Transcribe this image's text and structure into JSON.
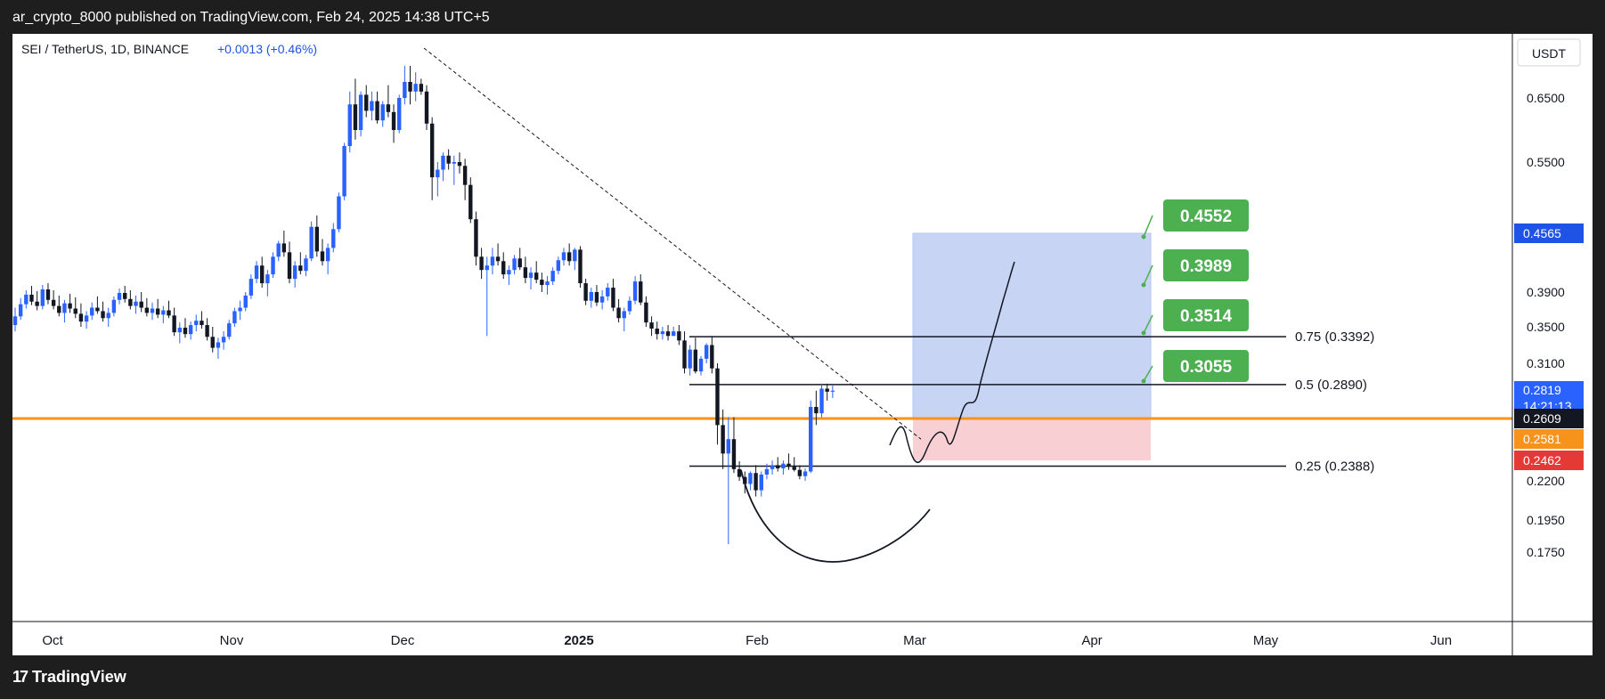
{
  "header": {
    "publisher": "ar_crypto_8000 published on TradingView.com, Feb 24, 2025 14:38 UTC+5"
  },
  "footer": {
    "brand": "TradingView",
    "brand_mark": "17"
  },
  "chart_data": {
    "type": "candlestick",
    "symbol": "SEI / TetherUS, 1D, BINANCE",
    "change": "+0.0013 (+0.46%)",
    "currency": "USDT",
    "x_ticks": [
      "Oct",
      "Nov",
      "Dec",
      "2025",
      "Feb",
      "Mar",
      "Apr",
      "May",
      "Jun"
    ],
    "y_ticks": [
      "0.6500",
      "0.5500",
      "0.3900",
      "0.3500",
      "0.3100",
      "0.2200",
      "0.1950",
      "0.1750"
    ],
    "last_price": "0.2819",
    "countdown": "14:21:13",
    "price_labels": [
      {
        "value": "0.4565",
        "color": "#1e53e5"
      },
      {
        "value": "0.2609",
        "color": "#131722"
      },
      {
        "value": "0.2581",
        "color": "#f7931a"
      },
      {
        "value": "0.2462",
        "color": "#e53935"
      }
    ],
    "targets": [
      "0.4552",
      "0.3989",
      "0.3514",
      "0.3055"
    ],
    "fib_levels": [
      {
        "label": "0.75 (0.3392)",
        "value": 0.3392
      },
      {
        "label": "0.5 (0.2890)",
        "value": 0.289
      },
      {
        "label": "0.25 (0.2388)",
        "value": 0.2388
      }
    ],
    "support_level": 0.2609,
    "colors": {
      "up": "#2962ff",
      "down": "#131722",
      "support": "#f7931a",
      "target": "#4caf50",
      "profit_zone": "#c7d4f3",
      "loss_zone": "#f8d0d3"
    },
    "candles": [
      [
        0.352,
        0.372,
        0.345,
        0.362
      ],
      [
        0.362,
        0.383,
        0.358,
        0.376
      ],
      [
        0.376,
        0.392,
        0.371,
        0.387
      ],
      [
        0.387,
        0.397,
        0.375,
        0.379
      ],
      [
        0.379,
        0.391,
        0.369,
        0.374
      ],
      [
        0.374,
        0.398,
        0.37,
        0.393
      ],
      [
        0.393,
        0.4,
        0.376,
        0.381
      ],
      [
        0.381,
        0.392,
        0.37,
        0.374
      ],
      [
        0.374,
        0.386,
        0.362,
        0.366
      ],
      [
        0.366,
        0.381,
        0.355,
        0.377
      ],
      [
        0.377,
        0.388,
        0.366,
        0.371
      ],
      [
        0.371,
        0.384,
        0.36,
        0.365
      ],
      [
        0.365,
        0.377,
        0.35,
        0.356
      ],
      [
        0.356,
        0.368,
        0.348,
        0.363
      ],
      [
        0.363,
        0.378,
        0.358,
        0.372
      ],
      [
        0.372,
        0.385,
        0.365,
        0.368
      ],
      [
        0.368,
        0.379,
        0.356,
        0.36
      ],
      [
        0.36,
        0.372,
        0.35,
        0.366
      ],
      [
        0.366,
        0.385,
        0.362,
        0.381
      ],
      [
        0.381,
        0.394,
        0.376,
        0.389
      ],
      [
        0.389,
        0.397,
        0.378,
        0.382
      ],
      [
        0.382,
        0.392,
        0.37,
        0.374
      ],
      [
        0.374,
        0.386,
        0.365,
        0.379
      ],
      [
        0.379,
        0.39,
        0.367,
        0.372
      ],
      [
        0.372,
        0.383,
        0.362,
        0.366
      ],
      [
        0.366,
        0.378,
        0.358,
        0.371
      ],
      [
        0.371,
        0.382,
        0.36,
        0.364
      ],
      [
        0.364,
        0.374,
        0.354,
        0.369
      ],
      [
        0.369,
        0.38,
        0.36,
        0.363
      ],
      [
        0.363,
        0.372,
        0.34,
        0.344
      ],
      [
        0.344,
        0.355,
        0.332,
        0.349
      ],
      [
        0.349,
        0.36,
        0.338,
        0.342
      ],
      [
        0.342,
        0.356,
        0.336,
        0.352
      ],
      [
        0.352,
        0.364,
        0.345,
        0.357
      ],
      [
        0.357,
        0.368,
        0.348,
        0.352
      ],
      [
        0.352,
        0.36,
        0.335,
        0.339
      ],
      [
        0.339,
        0.35,
        0.322,
        0.327
      ],
      [
        0.327,
        0.338,
        0.315,
        0.333
      ],
      [
        0.333,
        0.345,
        0.325,
        0.339
      ],
      [
        0.339,
        0.358,
        0.336,
        0.354
      ],
      [
        0.354,
        0.372,
        0.35,
        0.368
      ],
      [
        0.368,
        0.38,
        0.358,
        0.372
      ],
      [
        0.372,
        0.39,
        0.368,
        0.386
      ],
      [
        0.386,
        0.41,
        0.382,
        0.405
      ],
      [
        0.405,
        0.425,
        0.4,
        0.42
      ],
      [
        0.42,
        0.43,
        0.395,
        0.4
      ],
      [
        0.4,
        0.415,
        0.385,
        0.41
      ],
      [
        0.41,
        0.435,
        0.406,
        0.43
      ],
      [
        0.43,
        0.448,
        0.425,
        0.445
      ],
      [
        0.445,
        0.46,
        0.43,
        0.435
      ],
      [
        0.435,
        0.447,
        0.4,
        0.405
      ],
      [
        0.405,
        0.425,
        0.395,
        0.42
      ],
      [
        0.42,
        0.435,
        0.41,
        0.414
      ],
      [
        0.414,
        0.432,
        0.408,
        0.428
      ],
      [
        0.428,
        0.472,
        0.425,
        0.465
      ],
      [
        0.465,
        0.48,
        0.43,
        0.436
      ],
      [
        0.436,
        0.45,
        0.42,
        0.425
      ],
      [
        0.425,
        0.445,
        0.41,
        0.44
      ],
      [
        0.44,
        0.47,
        0.435,
        0.462
      ],
      [
        0.462,
        0.51,
        0.458,
        0.505
      ],
      [
        0.505,
        0.58,
        0.5,
        0.575
      ],
      [
        0.575,
        0.66,
        0.565,
        0.64
      ],
      [
        0.64,
        0.68,
        0.585,
        0.6
      ],
      [
        0.6,
        0.66,
        0.59,
        0.655
      ],
      [
        0.655,
        0.67,
        0.62,
        0.63
      ],
      [
        0.63,
        0.66,
        0.615,
        0.645
      ],
      [
        0.645,
        0.66,
        0.61,
        0.615
      ],
      [
        0.615,
        0.645,
        0.605,
        0.64
      ],
      [
        0.64,
        0.67,
        0.62,
        0.628
      ],
      [
        0.628,
        0.64,
        0.58,
        0.6
      ],
      [
        0.6,
        0.655,
        0.595,
        0.65
      ],
      [
        0.65,
        0.7,
        0.64,
        0.675
      ],
      [
        0.675,
        0.7,
        0.64,
        0.66
      ],
      [
        0.66,
        0.69,
        0.645,
        0.672
      ],
      [
        0.672,
        0.68,
        0.655,
        0.66
      ],
      [
        0.66,
        0.67,
        0.6,
        0.61
      ],
      [
        0.61,
        0.62,
        0.5,
        0.53
      ],
      [
        0.53,
        0.55,
        0.505,
        0.54
      ],
      [
        0.54,
        0.565,
        0.525,
        0.56
      ],
      [
        0.56,
        0.57,
        0.54,
        0.548
      ],
      [
        0.548,
        0.56,
        0.52,
        0.55
      ],
      [
        0.55,
        0.565,
        0.535,
        0.545
      ],
      [
        0.545,
        0.555,
        0.5,
        0.52
      ],
      [
        0.52,
        0.53,
        0.47,
        0.475
      ],
      [
        0.475,
        0.485,
        0.42,
        0.43
      ],
      [
        0.43,
        0.44,
        0.405,
        0.415
      ],
      [
        0.415,
        0.43,
        0.34,
        0.42
      ],
      [
        0.42,
        0.44,
        0.41,
        0.43
      ],
      [
        0.43,
        0.445,
        0.42,
        0.425
      ],
      [
        0.425,
        0.435,
        0.405,
        0.41
      ],
      [
        0.41,
        0.42,
        0.398,
        0.415
      ],
      [
        0.415,
        0.432,
        0.41,
        0.428
      ],
      [
        0.428,
        0.44,
        0.415,
        0.418
      ],
      [
        0.418,
        0.43,
        0.4,
        0.406
      ],
      [
        0.406,
        0.418,
        0.393,
        0.412
      ],
      [
        0.412,
        0.425,
        0.4,
        0.404
      ],
      [
        0.404,
        0.412,
        0.39,
        0.398
      ],
      [
        0.398,
        0.408,
        0.387,
        0.402
      ],
      [
        0.402,
        0.418,
        0.398,
        0.414
      ],
      [
        0.414,
        0.43,
        0.41,
        0.426
      ],
      [
        0.426,
        0.44,
        0.42,
        0.435
      ],
      [
        0.435,
        0.445,
        0.42,
        0.425
      ],
      [
        0.425,
        0.44,
        0.415,
        0.438
      ],
      [
        0.438,
        0.442,
        0.395,
        0.4
      ],
      [
        0.4,
        0.405,
        0.375,
        0.38
      ],
      [
        0.38,
        0.395,
        0.372,
        0.39
      ],
      [
        0.39,
        0.398,
        0.374,
        0.378
      ],
      [
        0.378,
        0.392,
        0.37,
        0.385
      ],
      [
        0.385,
        0.4,
        0.38,
        0.395
      ],
      [
        0.395,
        0.405,
        0.368,
        0.372
      ],
      [
        0.372,
        0.382,
        0.355,
        0.36
      ],
      [
        0.36,
        0.372,
        0.345,
        0.368
      ],
      [
        0.368,
        0.385,
        0.364,
        0.38
      ],
      [
        0.38,
        0.408,
        0.376,
        0.402
      ],
      [
        0.402,
        0.41,
        0.375,
        0.378
      ],
      [
        0.378,
        0.385,
        0.35,
        0.355
      ],
      [
        0.355,
        0.362,
        0.34,
        0.348
      ],
      [
        0.348,
        0.356,
        0.336,
        0.342
      ],
      [
        0.342,
        0.35,
        0.336,
        0.345
      ],
      [
        0.345,
        0.352,
        0.335,
        0.34
      ],
      [
        0.34,
        0.35,
        0.34,
        0.345
      ],
      [
        0.345,
        0.352,
        0.33,
        0.335
      ],
      [
        0.335,
        0.345,
        0.3,
        0.305
      ],
      [
        0.305,
        0.33,
        0.298,
        0.325
      ],
      [
        0.325,
        0.338,
        0.3,
        0.302
      ],
      [
        0.302,
        0.318,
        0.298,
        0.315
      ],
      [
        0.315,
        0.332,
        0.31,
        0.33
      ],
      [
        0.33,
        0.34,
        0.3,
        0.305
      ],
      [
        0.305,
        0.31,
        0.255,
        0.26
      ],
      [
        0.26,
        0.268,
        0.235,
        0.25
      ],
      [
        0.25,
        0.262,
        0.18,
        0.258
      ],
      [
        0.258,
        0.262,
        0.23,
        0.235
      ],
      [
        0.235,
        0.245,
        0.22,
        0.225
      ],
      [
        0.225,
        0.232,
        0.212,
        0.218
      ],
      [
        0.218,
        0.232,
        0.214,
        0.23
      ],
      [
        0.23,
        0.24,
        0.21,
        0.214
      ],
      [
        0.214,
        0.232,
        0.21,
        0.228
      ],
      [
        0.228,
        0.242,
        0.222,
        0.235
      ],
      [
        0.235,
        0.246,
        0.228,
        0.24
      ],
      [
        0.24,
        0.248,
        0.232,
        0.236
      ],
      [
        0.236,
        0.246,
        0.228,
        0.242
      ],
      [
        0.242,
        0.25,
        0.234,
        0.238
      ],
      [
        0.238,
        0.248,
        0.232,
        0.234
      ],
      [
        0.234,
        0.24,
        0.222,
        0.226
      ],
      [
        0.226,
        0.236,
        0.22,
        0.232
      ],
      [
        0.232,
        0.275,
        0.23,
        0.27
      ],
      [
        0.27,
        0.283,
        0.26,
        0.265
      ],
      [
        0.265,
        0.29,
        0.262,
        0.285
      ],
      [
        0.285,
        0.29,
        0.275,
        0.282
      ],
      [
        0.282,
        0.288,
        0.277,
        0.283
      ]
    ]
  }
}
